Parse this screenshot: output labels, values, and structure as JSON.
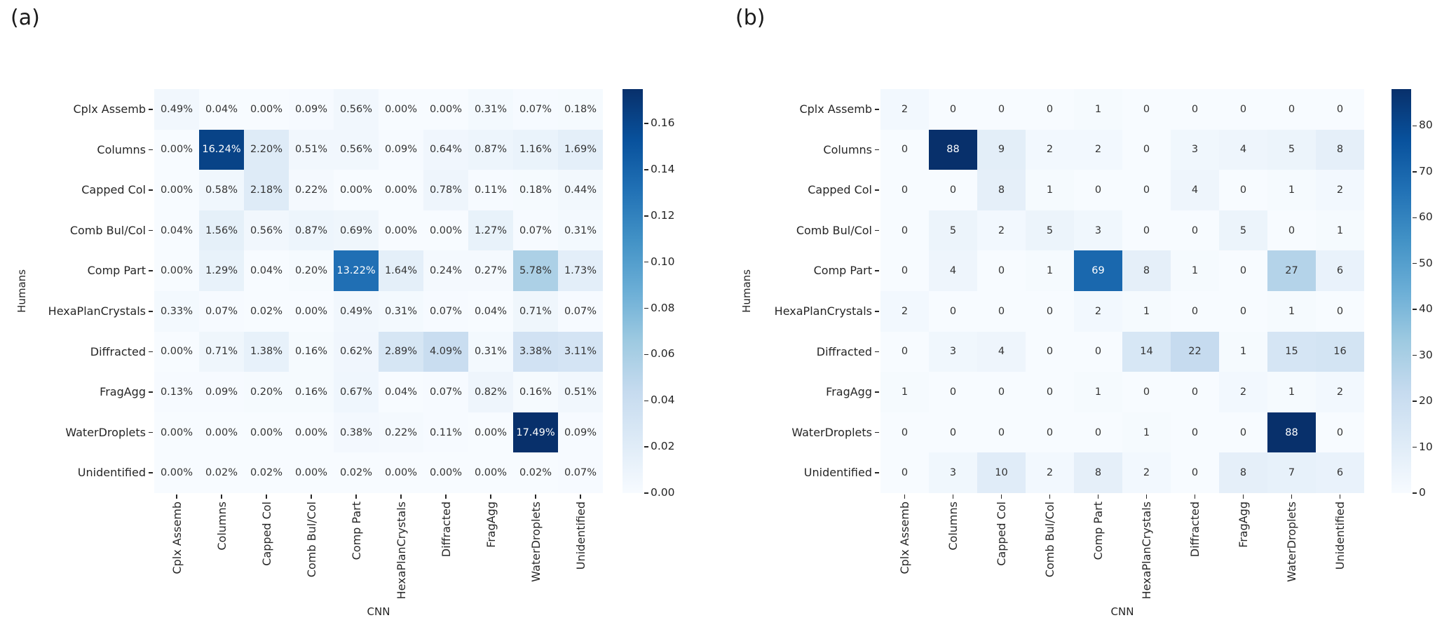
{
  "figure": {
    "background": "#ffffff"
  },
  "colors": {
    "blues_colormap_stops": [
      "#f7fbff",
      "#deebf7",
      "#c6dbef",
      "#9ecae1",
      "#6baed6",
      "#4292c6",
      "#2171b5",
      "#08519c",
      "#08306b"
    ],
    "annotation_dark": "#333333",
    "annotation_light": "#ffffff",
    "axis_text": "#262626",
    "tick_mark": "#262626",
    "max_cell": "#08306b",
    "min_cell": "#f7fbff"
  },
  "chart_data": [
    {
      "type": "heatmap",
      "panel_label": "(a)",
      "xlabel": "CNN",
      "ylabel": "Humans",
      "colormap": "Blues",
      "annotation_format": "percent2",
      "grid": "off",
      "legend_position": "right-colorbar",
      "x_categories": [
        "Cplx Assemb",
        "Columns",
        "Capped Col",
        "Comb Bul/Col",
        "Comp Part",
        "HexaPlanCrystals",
        "Diffracted",
        "FragAgg",
        "WaterDroplets",
        "Unidentified"
      ],
      "y_categories": [
        "Cplx Assemb",
        "Columns",
        "Capped Col",
        "Comb Bul/Col",
        "Comp Part",
        "HexaPlanCrystals",
        "Diffracted",
        "FragAgg",
        "WaterDroplets",
        "Unidentified"
      ],
      "values_unit": "percent",
      "values": [
        [
          0.49,
          0.04,
          0.0,
          0.09,
          0.56,
          0.0,
          0.0,
          0.31,
          0.07,
          0.18
        ],
        [
          0.0,
          16.24,
          2.2,
          0.51,
          0.56,
          0.09,
          0.64,
          0.87,
          1.16,
          1.69
        ],
        [
          0.0,
          0.58,
          2.18,
          0.22,
          0.0,
          0.0,
          0.78,
          0.11,
          0.18,
          0.44
        ],
        [
          0.04,
          1.56,
          0.56,
          0.87,
          0.69,
          0.0,
          0.0,
          1.27,
          0.07,
          0.31
        ],
        [
          0.0,
          1.29,
          0.04,
          0.2,
          13.22,
          1.64,
          0.24,
          0.27,
          5.78,
          1.73
        ],
        [
          0.33,
          0.07,
          0.02,
          0.0,
          0.49,
          0.31,
          0.07,
          0.04,
          0.71,
          0.07
        ],
        [
          0.0,
          0.71,
          1.38,
          0.16,
          0.62,
          2.89,
          4.09,
          0.31,
          3.38,
          3.11
        ],
        [
          0.13,
          0.09,
          0.2,
          0.16,
          0.67,
          0.04,
          0.07,
          0.82,
          0.16,
          0.51
        ],
        [
          0.0,
          0.0,
          0.0,
          0.0,
          0.38,
          0.22,
          0.11,
          0.0,
          17.49,
          0.09
        ],
        [
          0.0,
          0.02,
          0.02,
          0.0,
          0.02,
          0.0,
          0.0,
          0.0,
          0.02,
          0.07
        ]
      ],
      "vmin": 0,
      "vmax": 17.49,
      "colorbar_ticks": [
        {
          "label": "0.00",
          "value": 0
        },
        {
          "label": "0.02",
          "value": 2
        },
        {
          "label": "0.04",
          "value": 4
        },
        {
          "label": "0.06",
          "value": 6
        },
        {
          "label": "0.08",
          "value": 8
        },
        {
          "label": "0.10",
          "value": 10
        },
        {
          "label": "0.12",
          "value": 12
        },
        {
          "label": "0.14",
          "value": 14
        },
        {
          "label": "0.16",
          "value": 16
        }
      ]
    },
    {
      "type": "heatmap",
      "panel_label": "(b)",
      "xlabel": "CNN",
      "ylabel": "Humans",
      "colormap": "Blues",
      "annotation_format": "integer",
      "grid": "off",
      "legend_position": "right-colorbar",
      "x_categories": [
        "Cplx Assemb",
        "Columns",
        "Capped Col",
        "Comb Bul/Col",
        "Comp Part",
        "HexaPlanCrystals",
        "Diffracted",
        "FragAgg",
        "WaterDroplets",
        "Unidentified"
      ],
      "y_categories": [
        "Cplx Assemb",
        "Columns",
        "Capped Col",
        "Comb Bul/Col",
        "Comp Part",
        "HexaPlanCrystals",
        "Diffracted",
        "FragAgg",
        "WaterDroplets",
        "Unidentified"
      ],
      "values_unit": "count",
      "values": [
        [
          2,
          0,
          0,
          0,
          1,
          0,
          0,
          0,
          0,
          0
        ],
        [
          0,
          88,
          9,
          2,
          2,
          0,
          3,
          4,
          5,
          8
        ],
        [
          0,
          0,
          8,
          1,
          0,
          0,
          4,
          0,
          1,
          2
        ],
        [
          0,
          5,
          2,
          5,
          3,
          0,
          0,
          5,
          0,
          1
        ],
        [
          0,
          4,
          0,
          1,
          69,
          8,
          1,
          0,
          27,
          6
        ],
        [
          2,
          0,
          0,
          0,
          2,
          1,
          0,
          0,
          1,
          0
        ],
        [
          0,
          3,
          4,
          0,
          0,
          14,
          22,
          1,
          15,
          16
        ],
        [
          1,
          0,
          0,
          0,
          1,
          0,
          0,
          2,
          1,
          2
        ],
        [
          0,
          0,
          0,
          0,
          0,
          1,
          0,
          0,
          88,
          0
        ],
        [
          0,
          3,
          10,
          2,
          8,
          2,
          0,
          8,
          7,
          6
        ]
      ],
      "vmin": 0,
      "vmax": 88,
      "colorbar_ticks": [
        {
          "label": "0",
          "value": 0
        },
        {
          "label": "10",
          "value": 10
        },
        {
          "label": "20",
          "value": 20
        },
        {
          "label": "30",
          "value": 30
        },
        {
          "label": "40",
          "value": 40
        },
        {
          "label": "50",
          "value": 50
        },
        {
          "label": "60",
          "value": 60
        },
        {
          "label": "70",
          "value": 70
        },
        {
          "label": "80",
          "value": 80
        }
      ]
    }
  ]
}
